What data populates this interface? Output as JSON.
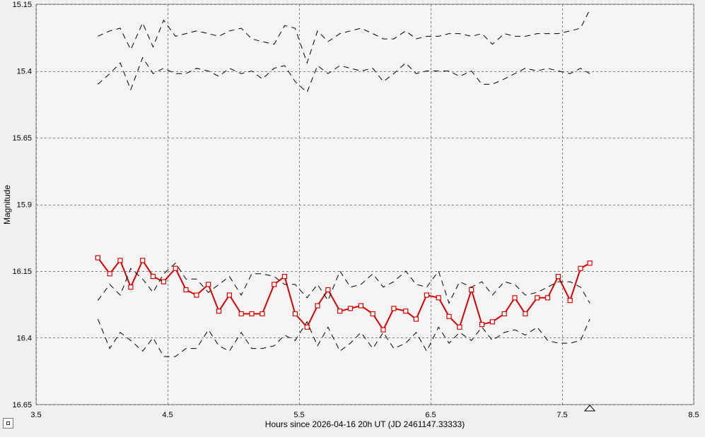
{
  "chart_data": {
    "type": "line",
    "xlabel": "Hours since 2026-04-16 20h UT (JD 2461147.33333)",
    "ylabel": "Magnitude",
    "xlim": [
      3.5,
      8.5
    ],
    "ylim": [
      15.15,
      16.65
    ],
    "y_inverted": true,
    "grid": true,
    "x_ticks": [
      "3.5",
      "4.5",
      "5.5",
      "6.5",
      "7.5",
      "8.5"
    ],
    "y_ticks": [
      "15.15",
      "15.4",
      "15.65",
      "15.9",
      "16.15",
      "16.4",
      "16.65"
    ],
    "x_tick_values": [
      3.5,
      4.5,
      5.5,
      6.5,
      7.5,
      8.5
    ],
    "y_tick_values": [
      15.15,
      15.4,
      15.65,
      15.9,
      16.15,
      16.4,
      16.65
    ],
    "marker_x": 7.71,
    "colors": {
      "target": "#dd0000",
      "envelope": "#000000",
      "grid": "#808080",
      "plot_bg": "#f4f4f4"
    },
    "series": [
      {
        "role": "target",
        "x": [
          3.97,
          4.06,
          4.14,
          4.22,
          4.31,
          4.39,
          4.47,
          4.56,
          4.64,
          4.72,
          4.81,
          4.89,
          4.97,
          5.06,
          5.14,
          5.22,
          5.31,
          5.39,
          5.47,
          5.56,
          5.64,
          5.72,
          5.81,
          5.89,
          5.97,
          6.06,
          6.14,
          6.22,
          6.31,
          6.39,
          6.47,
          6.56,
          6.64,
          6.72,
          6.81,
          6.89,
          6.97,
          7.06,
          7.14,
          7.22,
          7.31,
          7.39,
          7.47,
          7.56,
          7.64,
          7.71
        ],
        "y": [
          16.1,
          16.16,
          16.11,
          16.21,
          16.11,
          16.17,
          16.19,
          16.14,
          16.22,
          16.24,
          16.2,
          16.3,
          16.24,
          16.31,
          16.31,
          16.31,
          16.2,
          16.17,
          16.31,
          16.36,
          16.28,
          16.22,
          16.3,
          16.29,
          16.28,
          16.31,
          16.37,
          16.29,
          16.3,
          16.33,
          16.24,
          16.25,
          16.32,
          16.36,
          16.22,
          16.35,
          16.34,
          16.31,
          16.25,
          16.31,
          16.25,
          16.25,
          16.17,
          16.26,
          16.14,
          16.12
        ]
      },
      {
        "role": "envelope-upper",
        "x": [
          3.97,
          4.06,
          4.14,
          4.22,
          4.31,
          4.39,
          4.47,
          4.56,
          4.64,
          4.72,
          4.81,
          4.89,
          4.97,
          5.06,
          5.14,
          5.22,
          5.31,
          5.39,
          5.47,
          5.56,
          5.64,
          5.72,
          5.81,
          5.89,
          5.97,
          6.06,
          6.14,
          6.22,
          6.31,
          6.39,
          6.47,
          6.56,
          6.64,
          6.72,
          6.81,
          6.89,
          6.97,
          7.06,
          7.14,
          7.22,
          7.31,
          7.39,
          7.47,
          7.56,
          7.64,
          7.71
        ],
        "y": [
          16.26,
          16.2,
          16.24,
          16.14,
          16.18,
          16.23,
          16.16,
          16.12,
          16.18,
          16.18,
          16.23,
          16.2,
          16.17,
          16.24,
          16.16,
          16.16,
          16.17,
          16.2,
          16.2,
          16.25,
          16.2,
          16.26,
          16.15,
          16.21,
          16.2,
          16.16,
          16.21,
          16.19,
          16.15,
          16.2,
          16.21,
          16.15,
          16.27,
          16.19,
          16.21,
          16.19,
          16.24,
          16.19,
          16.2,
          16.24,
          16.23,
          16.21,
          16.19,
          16.19,
          16.21,
          16.27
        ]
      },
      {
        "role": "envelope-lower",
        "x": [
          3.97,
          4.06,
          4.14,
          4.22,
          4.31,
          4.39,
          4.47,
          4.56,
          4.64,
          4.72,
          4.81,
          4.89,
          4.97,
          5.06,
          5.14,
          5.22,
          5.31,
          5.39,
          5.47,
          5.56,
          5.64,
          5.72,
          5.81,
          5.89,
          5.97,
          6.06,
          6.14,
          6.22,
          6.31,
          6.39,
          6.47,
          6.56,
          6.64,
          6.72,
          6.81,
          6.89,
          6.97,
          7.06,
          7.14,
          7.22,
          7.31,
          7.39,
          7.47,
          7.56,
          7.64,
          7.71
        ],
        "y": [
          16.33,
          16.44,
          16.38,
          16.41,
          16.45,
          16.4,
          16.47,
          16.47,
          16.44,
          16.44,
          16.37,
          16.43,
          16.45,
          16.38,
          16.44,
          16.44,
          16.43,
          16.39,
          16.41,
          16.34,
          16.43,
          16.36,
          16.45,
          16.42,
          16.38,
          16.44,
          16.38,
          16.44,
          16.42,
          16.38,
          16.45,
          16.36,
          16.42,
          16.38,
          16.41,
          16.36,
          16.41,
          16.38,
          16.37,
          16.39,
          16.36,
          16.41,
          16.42,
          16.42,
          16.41,
          16.33
        ]
      },
      {
        "role": "envelope-upper",
        "x": [
          3.97,
          4.06,
          4.14,
          4.22,
          4.31,
          4.39,
          4.47,
          4.56,
          4.64,
          4.72,
          4.81,
          4.89,
          4.97,
          5.06,
          5.14,
          5.22,
          5.31,
          5.39,
          5.47,
          5.56,
          5.64,
          5.72,
          5.81,
          5.89,
          5.97,
          6.06,
          6.14,
          6.22,
          6.31,
          6.39,
          6.47,
          6.56,
          6.64,
          6.72,
          6.81,
          6.89,
          6.97,
          7.06,
          7.14,
          7.22,
          7.31,
          7.39,
          7.47,
          7.56,
          7.64,
          7.71
        ],
        "y": [
          15.27,
          15.25,
          15.24,
          15.32,
          15.22,
          15.31,
          15.21,
          15.27,
          15.26,
          15.25,
          15.26,
          15.27,
          15.25,
          15.24,
          15.28,
          15.29,
          15.3,
          15.23,
          15.24,
          15.37,
          15.25,
          15.29,
          15.26,
          15.25,
          15.24,
          15.26,
          15.28,
          15.28,
          15.25,
          15.28,
          15.27,
          15.27,
          15.26,
          15.26,
          15.27,
          15.26,
          15.3,
          15.26,
          15.27,
          15.27,
          15.26,
          15.26,
          15.26,
          15.25,
          15.24,
          15.17
        ]
      },
      {
        "role": "envelope-lower",
        "x": [
          3.97,
          4.06,
          4.14,
          4.22,
          4.31,
          4.39,
          4.47,
          4.56,
          4.64,
          4.72,
          4.81,
          4.89,
          4.97,
          5.06,
          5.14,
          5.22,
          5.31,
          5.39,
          5.47,
          5.56,
          5.64,
          5.72,
          5.81,
          5.89,
          5.97,
          6.06,
          6.14,
          6.22,
          6.31,
          6.39,
          6.47,
          6.56,
          6.64,
          6.72,
          6.81,
          6.89,
          6.97,
          7.06,
          7.14,
          7.22,
          7.31,
          7.39,
          7.47,
          7.56,
          7.64,
          7.71
        ],
        "y": [
          15.45,
          15.41,
          15.37,
          15.47,
          15.35,
          15.41,
          15.39,
          15.41,
          15.41,
          15.39,
          15.4,
          15.42,
          15.39,
          15.41,
          15.4,
          15.43,
          15.39,
          15.38,
          15.44,
          15.48,
          15.38,
          15.41,
          15.38,
          15.39,
          15.4,
          15.39,
          15.44,
          15.41,
          15.37,
          15.41,
          15.4,
          15.4,
          15.4,
          15.42,
          15.4,
          15.45,
          15.45,
          15.43,
          15.41,
          15.39,
          15.4,
          15.39,
          15.4,
          15.41,
          15.39,
          15.41
        ]
      }
    ]
  }
}
